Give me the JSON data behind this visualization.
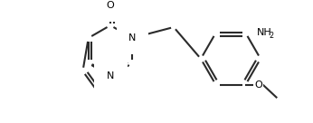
{
  "bg": "#ffffff",
  "bc": "#2b2b2b",
  "tc": "#000000",
  "lw": 1.5,
  "fs": 8.0,
  "figsize": [
    3.46,
    1.36
  ],
  "dpi": 100,
  "xlim": [
    0,
    346
  ],
  "ylim": [
    0,
    136
  ]
}
